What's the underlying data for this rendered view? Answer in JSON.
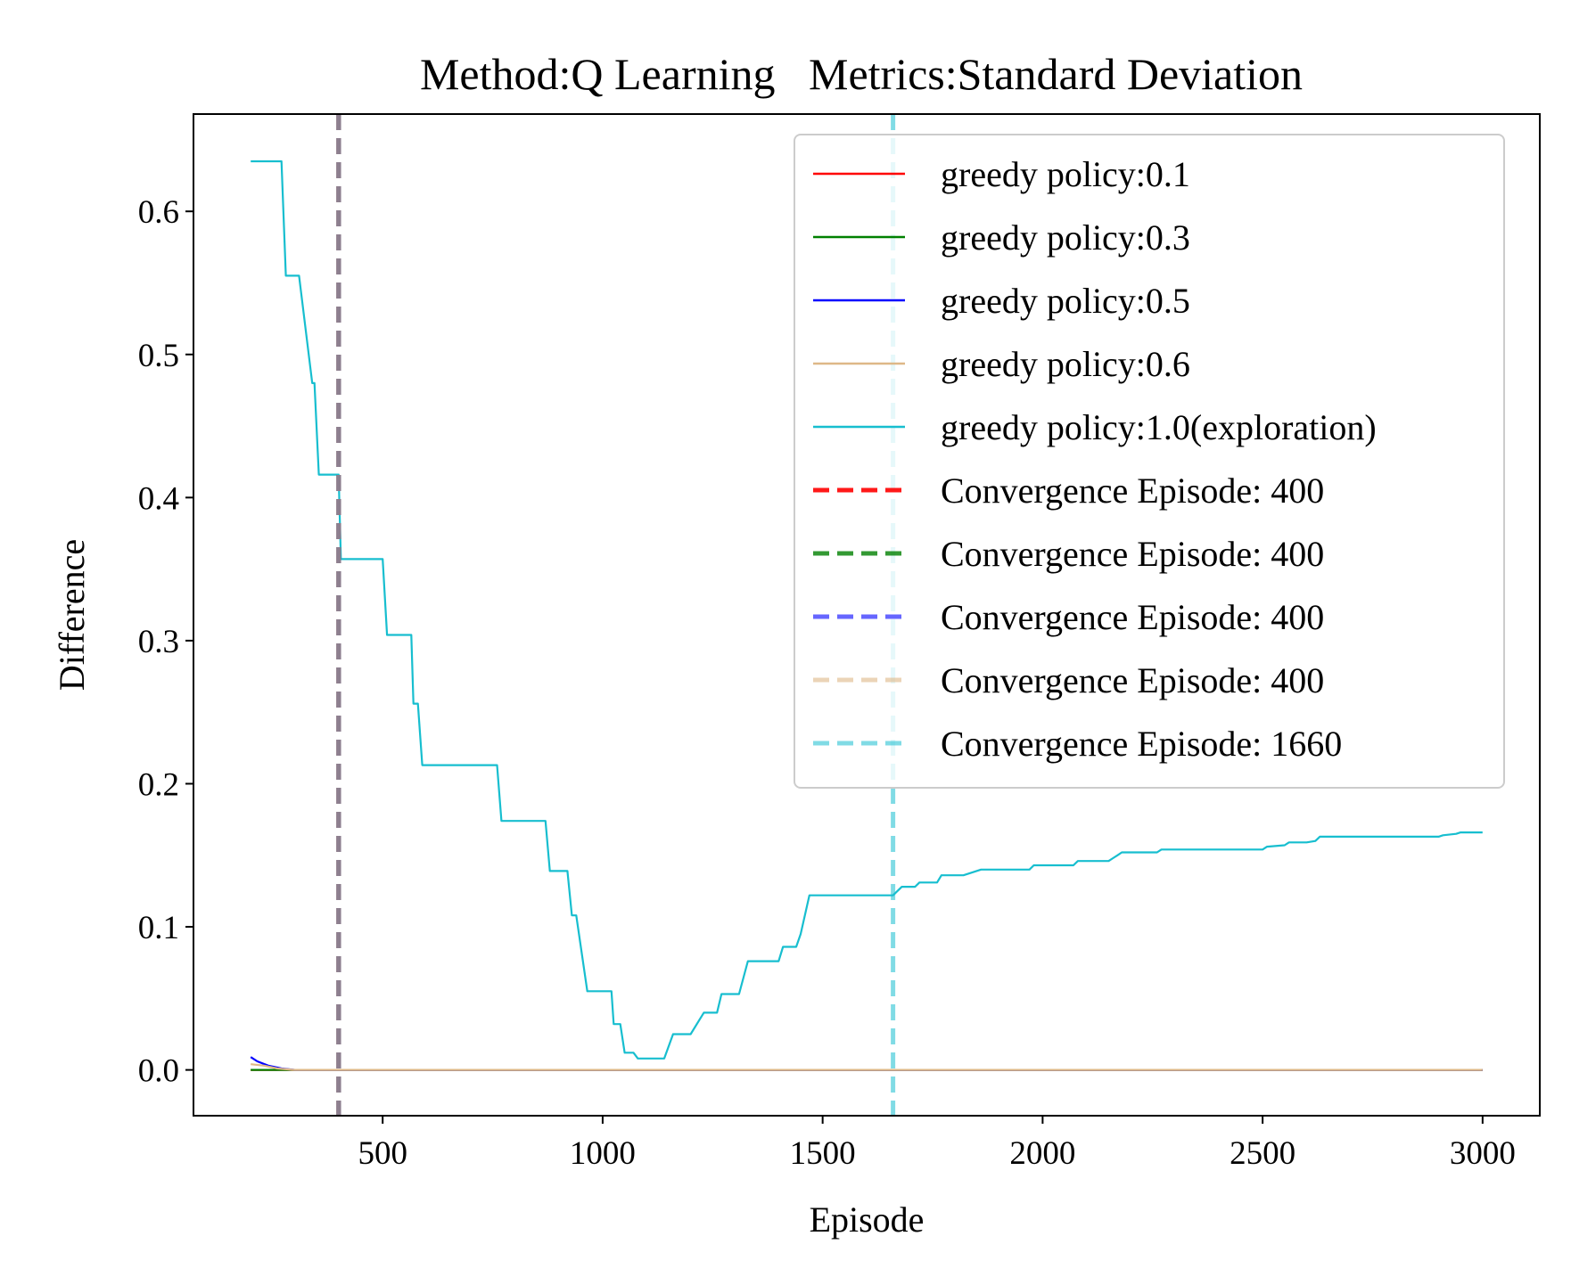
{
  "chart_data": {
    "type": "line",
    "title": "Method:Q Learning   Metrics:Standard Deviation",
    "xlabel": "Episode",
    "ylabel": "Difference",
    "xlim": [
      70,
      3130
    ],
    "ylim": [
      -0.032,
      0.668
    ],
    "xticks": [
      500,
      1000,
      1500,
      2000,
      2500,
      3000
    ],
    "xtick_labels": [
      "500",
      "1000",
      "1500",
      "2000",
      "2500",
      "3000"
    ],
    "yticks": [
      0.0,
      0.1,
      0.2,
      0.3,
      0.4,
      0.5,
      0.6
    ],
    "ytick_labels": [
      "0.0",
      "0.1",
      "0.2",
      "0.3",
      "0.4",
      "0.5",
      "0.6"
    ],
    "grid": false,
    "legend_position": "top-right",
    "series": [
      {
        "name": "greedy policy:0.1",
        "color": "#ff0000",
        "x": [
          200,
          260,
          300,
          3000
        ],
        "y": [
          0.0,
          0.0,
          0.0,
          0.0
        ]
      },
      {
        "name": "greedy policy:0.3",
        "color": "#008000",
        "x": [
          200,
          260,
          300,
          3000
        ],
        "y": [
          0.0,
          0.0,
          0.0,
          0.0
        ]
      },
      {
        "name": "greedy policy:0.5",
        "color": "#0000ff",
        "x": [
          200,
          215,
          240,
          270,
          300,
          3000
        ],
        "y": [
          0.009,
          0.006,
          0.003,
          0.001,
          0.0,
          0.0
        ]
      },
      {
        "name": "greedy policy:0.6",
        "color": "#deb887",
        "x": [
          200,
          230,
          260,
          300,
          3000
        ],
        "y": [
          0.004,
          0.003,
          0.001,
          0.0,
          0.0
        ]
      },
      {
        "name": "greedy policy:1.0(exploration)",
        "color": "#17becf",
        "x": [
          200,
          270,
          280,
          300,
          310,
          340,
          345,
          355,
          360,
          400,
          405,
          500,
          510,
          560,
          565,
          570,
          580,
          590,
          760,
          770,
          870,
          880,
          920,
          930,
          940,
          965,
          1000,
          1020,
          1025,
          1040,
          1050,
          1060,
          1070,
          1080,
          1090,
          1100,
          1120,
          1140,
          1160,
          1180,
          1190,
          1200,
          1230,
          1250,
          1260,
          1270,
          1300,
          1310,
          1330,
          1340,
          1350,
          1400,
          1410,
          1440,
          1450,
          1470,
          1520,
          1660,
          1680,
          1710,
          1720,
          1760,
          1770,
          1810,
          1820,
          1860,
          1870,
          1970,
          1980,
          2070,
          2080,
          2150,
          2160,
          2170,
          2180,
          2260,
          2270,
          2500,
          2510,
          2550,
          2560,
          2600,
          2620,
          2630,
          2700,
          2900,
          2910,
          2940,
          2950,
          3000
        ],
        "y": [
          0.635,
          0.635,
          0.555,
          0.555,
          0.555,
          0.48,
          0.48,
          0.416,
          0.416,
          0.416,
          0.357,
          0.357,
          0.304,
          0.304,
          0.304,
          0.256,
          0.256,
          0.213,
          0.213,
          0.174,
          0.174,
          0.139,
          0.139,
          0.108,
          0.108,
          0.055,
          0.055,
          0.055,
          0.032,
          0.032,
          0.012,
          0.012,
          0.012,
          0.008,
          0.008,
          0.008,
          0.008,
          0.008,
          0.025,
          0.025,
          0.025,
          0.025,
          0.04,
          0.04,
          0.04,
          0.053,
          0.053,
          0.053,
          0.076,
          0.076,
          0.076,
          0.076,
          0.086,
          0.086,
          0.095,
          0.122,
          0.122,
          0.122,
          0.128,
          0.128,
          0.131,
          0.131,
          0.136,
          0.136,
          0.136,
          0.14,
          0.14,
          0.14,
          0.143,
          0.143,
          0.146,
          0.146,
          0.148,
          0.15,
          0.152,
          0.152,
          0.154,
          0.154,
          0.156,
          0.157,
          0.159,
          0.159,
          0.16,
          0.163,
          0.163,
          0.163,
          0.164,
          0.165,
          0.166,
          0.166
        ]
      }
    ],
    "vlines": [
      {
        "name": "Convergence Episode: 400",
        "x": 400,
        "color": "#ff0000",
        "alpha": 0.9
      },
      {
        "name": "Convergence Episode: 400",
        "x": 400,
        "color": "#008000",
        "alpha": 0.8
      },
      {
        "name": "Convergence Episode: 400",
        "x": 400,
        "color": "#0000ff",
        "alpha": 0.6
      },
      {
        "name": "Convergence Episode: 400",
        "x": 400,
        "color": "#deb887",
        "alpha": 0.6
      },
      {
        "name": "Convergence Episode: 1660",
        "x": 1660,
        "color": "#17becf",
        "alpha": 0.55
      }
    ]
  }
}
